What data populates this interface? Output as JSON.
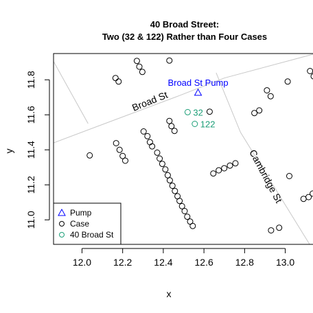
{
  "chart_data": {
    "type": "scatter",
    "title": "40 Broad Street:",
    "subtitle": "Two (32 & 122) Rather than Four Cases",
    "xlabel": "x",
    "ylabel": "y",
    "xlim": [
      11.86,
      13.15
    ],
    "ylim": [
      10.86,
      11.95
    ],
    "x_ticks": [
      12.0,
      12.2,
      12.4,
      12.6,
      12.8,
      13.0
    ],
    "x_tick_labels": [
      "12.0",
      "12.2",
      "12.4",
      "12.6",
      "12.8",
      "13.0"
    ],
    "y_ticks": [
      11.0,
      11.2,
      11.4,
      11.6,
      11.8
    ],
    "y_tick_labels": [
      "11.0",
      "11.2",
      "11.4",
      "11.6",
      "11.8"
    ],
    "grid": false,
    "legend_position": "bottom-left",
    "legend": [
      {
        "label": "Pump",
        "symbol": "triangle",
        "color": "#0000ff"
      },
      {
        "label": "Case",
        "symbol": "circle",
        "color": "#000000"
      },
      {
        "label": "40 Broad St",
        "symbol": "circle",
        "color": "#1b9e77"
      }
    ],
    "colors": {
      "pump": "#0000ff",
      "case": "#000000",
      "broad40": "#1b9e77",
      "street": "#c8c8c8"
    },
    "streets": [
      {
        "points": [
          [
            11.86,
            11.44
          ],
          [
            12.48,
            11.71
          ],
          [
            12.7,
            11.81
          ],
          [
            13.15,
            11.95
          ]
        ]
      },
      {
        "points": [
          [
            11.86,
            11.905
          ],
          [
            12.03,
            11.55
          ]
        ]
      },
      {
        "points": [
          [
            12.66,
            11.84
          ],
          [
            12.78,
            11.5
          ],
          [
            13.12,
            10.86
          ]
        ]
      }
    ],
    "street_labels": [
      {
        "text": "Broad St",
        "x": 12.34,
        "y": 11.66,
        "angle": -22
      },
      {
        "text": "Cambridge St",
        "x": 12.89,
        "y": 11.24,
        "angle": 62
      }
    ],
    "pump": {
      "label": "Broad St Pump",
      "x": 12.571,
      "y": 11.727
    },
    "broad_cases": [
      {
        "label": "32",
        "x": 12.52,
        "y": 11.615
      },
      {
        "label": "122",
        "x": 12.555,
        "y": 11.548
      }
    ],
    "cases": [
      [
        12.038,
        11.368
      ],
      [
        12.165,
        11.81
      ],
      [
        12.18,
        11.79
      ],
      [
        12.168,
        11.438
      ],
      [
        12.185,
        11.4
      ],
      [
        12.2,
        11.365
      ],
      [
        12.213,
        11.338
      ],
      [
        12.27,
        11.908
      ],
      [
        12.282,
        11.875
      ],
      [
        12.297,
        11.845
      ],
      [
        12.303,
        11.505
      ],
      [
        12.322,
        11.478
      ],
      [
        12.334,
        11.444
      ],
      [
        12.345,
        11.42
      ],
      [
        12.37,
        11.384
      ],
      [
        12.382,
        11.35
      ],
      [
        12.395,
        11.32
      ],
      [
        12.41,
        11.288
      ],
      [
        12.422,
        11.255
      ],
      [
        12.432,
        11.226
      ],
      [
        12.445,
        11.195
      ],
      [
        12.457,
        11.165
      ],
      [
        12.47,
        11.135
      ],
      [
        12.48,
        11.108
      ],
      [
        12.492,
        11.078
      ],
      [
        12.505,
        11.05
      ],
      [
        12.518,
        11.018
      ],
      [
        12.532,
        10.99
      ],
      [
        12.545,
        10.965
      ],
      [
        12.43,
        11.91
      ],
      [
        12.43,
        11.565
      ],
      [
        12.44,
        11.535
      ],
      [
        12.455,
        11.508
      ],
      [
        12.628,
        11.618
      ],
      [
        12.646,
        11.265
      ],
      [
        12.673,
        11.283
      ],
      [
        12.7,
        11.295
      ],
      [
        12.728,
        11.31
      ],
      [
        12.755,
        11.323
      ],
      [
        12.848,
        11.61
      ],
      [
        12.872,
        11.625
      ],
      [
        12.91,
        11.74
      ],
      [
        12.928,
        11.706
      ],
      [
        13.012,
        11.79
      ],
      [
        12.93,
        10.94
      ],
      [
        12.97,
        10.955
      ],
      [
        13.02,
        11.25
      ],
      [
        13.09,
        11.12
      ],
      [
        13.115,
        11.13
      ],
      [
        13.135,
        11.15
      ],
      [
        13.122,
        11.85
      ],
      [
        13.14,
        11.82
      ]
    ]
  }
}
